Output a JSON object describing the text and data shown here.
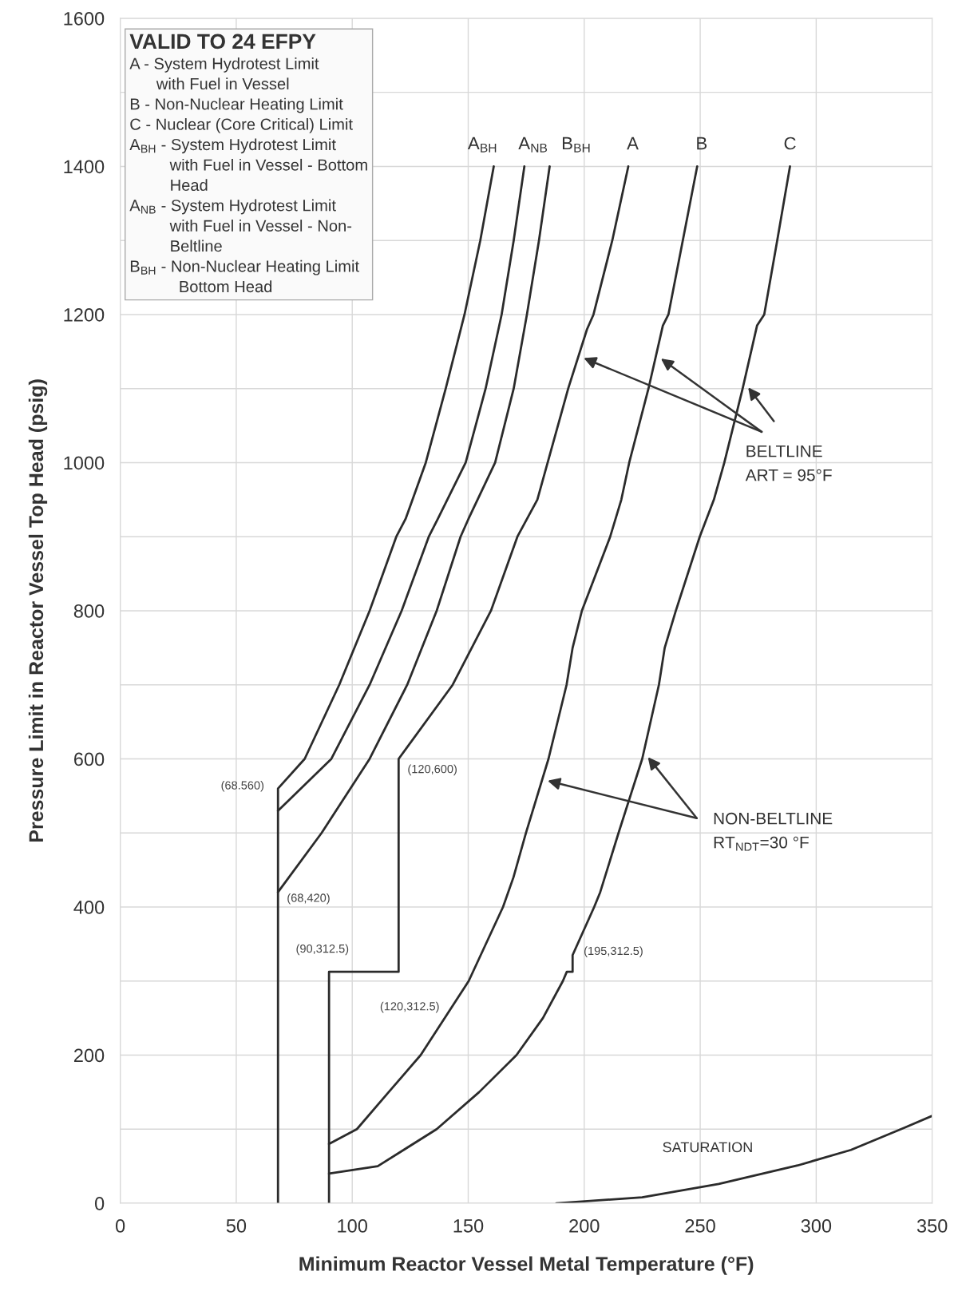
{
  "chart_data": {
    "type": "line",
    "xlabel": "Minimum Reactor Vessel Metal Temperature (°F)",
    "ylabel": "Pressure Limit in Reactor Vessel Top Head (psig)",
    "xlim": [
      0,
      350
    ],
    "ylim": [
      0,
      1600
    ],
    "xticks": [
      0,
      50,
      100,
      150,
      200,
      250,
      300,
      350
    ],
    "yticks": [
      0,
      {
        "value": 100,
        "label": null
      },
      200,
      {
        "value": 300,
        "label": null
      },
      400,
      {
        "value": 500,
        "label": null
      },
      600,
      {
        "value": 700,
        "label": null
      },
      800,
      {
        "value": 900,
        "label": null
      },
      1000,
      {
        "value": 1100,
        "label": null
      },
      1200,
      {
        "value": 1300,
        "label": null
      },
      1400,
      {
        "value": 1500,
        "label": null
      },
      1600
    ],
    "grid": true,
    "marker": "none",
    "line_style": "solid",
    "legend": false,
    "series": [
      {
        "name": "A$_{BH}$",
        "color": "#2b2b2b",
        "x": [
          68,
          68,
          79.5,
          94.4,
          107.5,
          119,
          123,
          131.7,
          140.3,
          148.4,
          155.2,
          161
        ],
        "values": [
          0,
          560,
          600,
          700,
          800,
          900,
          924,
          1000,
          1100,
          1200,
          1300,
          1400
        ]
      },
      {
        "name": "A$_{NB}$",
        "color": "#2b2b2b",
        "x": [
          68,
          91,
          107.5,
          121.3,
          133,
          136.9,
          148.9,
          157.5,
          164.4,
          169.6,
          174.2
        ],
        "values": [
          530,
          600,
          700,
          800,
          900,
          924,
          1000,
          1100,
          1200,
          1300,
          1400
        ]
      },
      {
        "name": "B$_{BH}$",
        "color": "#2b2b2b",
        "x": [
          68,
          86.8,
          107.5,
          123.7,
          136.4,
          146.7,
          150.1,
          161.6,
          169.6,
          175.3,
          180.5,
          185.1
        ],
        "values": [
          420,
          500,
          600,
          700,
          800,
          900,
          924,
          1000,
          1100,
          1200,
          1300,
          1400
        ]
      },
      {
        "name": "A",
        "color": "#2b2b2b",
        "x": [
          90,
          90,
          120,
          120,
          143.3,
          159.8,
          171.2,
          179.8,
          193.1,
          201.2,
          204,
          212.1,
          219
        ],
        "values": [
          0,
          312.5,
          312.5,
          600,
          700,
          800,
          900,
          950,
          1100,
          1180,
          1200,
          1300,
          1400
        ]
      },
      {
        "name": "B",
        "color": "#2b2b2b",
        "x": [
          90,
          102,
          115.7,
          129.5,
          150.2,
          165,
          169.5,
          174.9,
          184.6,
          192.4,
          195,
          199,
          211.2,
          216,
          219.4,
          227.7,
          233.9,
          236.3,
          242.5,
          248.7
        ],
        "values": [
          80,
          100,
          150,
          200,
          300,
          400,
          440,
          500,
          600,
          700,
          750,
          800,
          900,
          950,
          1000,
          1100,
          1185,
          1200,
          1300,
          1400
        ]
      },
      {
        "name": "C",
        "color": "#2b2b2b",
        "x": [
          90,
          111,
          136.4,
          154.7,
          170.8,
          182.2,
          190.8,
          192.5,
          195,
          195,
          204.3,
          206.9,
          214.8,
          225,
          232.2,
          234.7,
          239.5,
          249.8,
          255.9,
          260.4,
          268.3,
          274.5,
          277.6,
          283.2,
          288.7
        ],
        "values": [
          40,
          50,
          100,
          150,
          200,
          250,
          300,
          312.5,
          312.5,
          335,
          400,
          420,
          500,
          600,
          700,
          750,
          800,
          900,
          950,
          1000,
          1100,
          1185,
          1200,
          1300,
          1400
        ]
      },
      {
        "name": "SATURATION",
        "color": "#2b2b2b",
        "x": [
          188,
          225,
          258,
          292,
          315,
          338,
          350
        ],
        "values": [
          0,
          8,
          26,
          51,
          72,
          102,
          118
        ]
      }
    ],
    "annotations": [
      "VALID TO 24 EFPY",
      "A - System Hydrotest Limit\n      with Fuel in Vessel\nB - Non-Nuclear Heating Limit\nC - Nuclear (Core Critical) Limit\nA$_{BH}$ - System Hydrotest Limit\n         with Fuel in Vessel - Bottom\n         Head\nA$_{NB}$ - System Hydrotest Limit\n         with Fuel in Vessel - Non-\n         Beltline\nB$_{BH}$ - Non-Nuclear Heating Limit\n           Bottom Head",
      "BELTLINE\nART = 95°F",
      "NON-BELTLINE\nRT$_{NDT}$=30 °F",
      {
        "text": "(68.560)",
        "x": 68,
        "y": 560
      },
      {
        "text": "(68,420)",
        "x": 68,
        "y": 420
      },
      {
        "text": "(120,600)",
        "x": 120,
        "y": 600
      },
      {
        "text": "(90,312.5)",
        "x": 90,
        "y": 312.5
      },
      {
        "text": "(120,312.5)",
        "x": 120,
        "y": 312.5
      },
      {
        "text": "(195,312.5)",
        "x": 195,
        "y": 312.5
      }
    ]
  }
}
